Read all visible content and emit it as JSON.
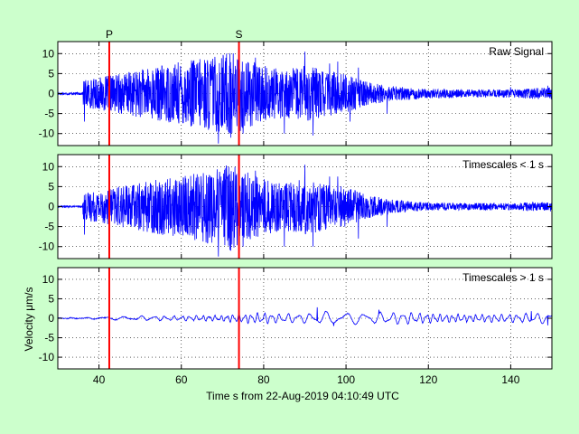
{
  "figure": {
    "background": "#ccffcc",
    "xlabel": "Time s from 22-Aug-2019 04:10:49 UTC",
    "ylabel": "Velocity μm/s",
    "phase_colors": "#ff0000",
    "trace_color": "#0000ff"
  },
  "chart_data": [
    {
      "type": "line",
      "title": "Raw Signal",
      "xlim": [
        30,
        150
      ],
      "ylim": [
        -13,
        13
      ],
      "xticks": [
        40,
        60,
        80,
        100,
        120,
        140
      ],
      "yticks": [
        -10,
        -5,
        0,
        5,
        10
      ],
      "grid": true,
      "phases": [
        {
          "label": "P",
          "x": 42.5
        },
        {
          "label": "S",
          "x": 74
        }
      ],
      "envelope": [
        [
          30,
          0.3
        ],
        [
          36,
          0.3
        ],
        [
          36.2,
          3.5
        ],
        [
          40,
          4
        ],
        [
          45,
          5
        ],
        [
          50,
          6
        ],
        [
          55,
          7
        ],
        [
          60,
          8
        ],
        [
          65,
          9
        ],
        [
          70,
          10
        ],
        [
          72,
          11
        ],
        [
          75,
          9
        ],
        [
          80,
          7
        ],
        [
          85,
          6
        ],
        [
          90,
          7
        ],
        [
          95,
          6
        ],
        [
          100,
          5
        ],
        [
          105,
          3
        ],
        [
          110,
          2
        ],
        [
          115,
          1.6
        ],
        [
          120,
          1.2
        ],
        [
          130,
          1
        ],
        [
          140,
          1
        ],
        [
          150,
          1.6
        ]
      ],
      "peaks": [
        [
          36.5,
          -7
        ],
        [
          69,
          -12.5
        ],
        [
          71,
          10
        ],
        [
          72,
          -11
        ],
        [
          75,
          -10
        ],
        [
          78,
          9
        ],
        [
          85,
          -10
        ],
        [
          90,
          10.5
        ],
        [
          92,
          -10.5
        ],
        [
          96,
          7.5
        ],
        [
          98,
          8
        ],
        [
          101,
          -7
        ],
        [
          103,
          6.5
        ],
        [
          110,
          -5
        ],
        [
          140,
          1.6
        ],
        [
          149,
          2
        ]
      ]
    },
    {
      "type": "line",
      "title": "Timescales < 1 s",
      "xlim": [
        30,
        150
      ],
      "ylim": [
        -13,
        13
      ],
      "xticks": [
        40,
        60,
        80,
        100,
        120,
        140
      ],
      "yticks": [
        -10,
        -5,
        0,
        5,
        10
      ],
      "grid": true,
      "phases": [
        {
          "label": "",
          "x": 42.5
        },
        {
          "label": "",
          "x": 74
        }
      ],
      "envelope": [
        [
          30,
          0.2
        ],
        [
          36,
          0.2
        ],
        [
          36.2,
          3.5
        ],
        [
          40,
          4
        ],
        [
          45,
          5
        ],
        [
          50,
          6
        ],
        [
          55,
          7
        ],
        [
          60,
          8
        ],
        [
          65,
          9
        ],
        [
          70,
          10
        ],
        [
          72,
          11
        ],
        [
          75,
          9
        ],
        [
          80,
          7
        ],
        [
          85,
          6
        ],
        [
          90,
          7
        ],
        [
          95,
          6
        ],
        [
          100,
          5
        ],
        [
          105,
          3
        ],
        [
          110,
          2
        ],
        [
          115,
          1.4
        ],
        [
          120,
          1
        ],
        [
          130,
          0.9
        ],
        [
          140,
          0.9
        ],
        [
          150,
          1.2
        ]
      ],
      "peaks": [
        [
          36.5,
          -7
        ],
        [
          69,
          -12.5
        ],
        [
          71,
          10
        ],
        [
          72,
          -11
        ],
        [
          75,
          -10
        ],
        [
          78,
          9
        ],
        [
          85,
          -10
        ],
        [
          90,
          10.5
        ],
        [
          92,
          -10
        ],
        [
          96,
          7.5
        ],
        [
          98,
          7.5
        ],
        [
          103,
          -8
        ],
        [
          110,
          -5
        ]
      ]
    },
    {
      "type": "line",
      "title": "Timescales > 1 s",
      "xlim": [
        30,
        150
      ],
      "ylim": [
        -13,
        13
      ],
      "xticks": [
        40,
        60,
        80,
        100,
        120,
        140
      ],
      "yticks": [
        -10,
        -5,
        0,
        5,
        10
      ],
      "grid": true,
      "phases": [
        {
          "label": "",
          "x": 42.5
        },
        {
          "label": "",
          "x": 74
        }
      ],
      "envelope": [
        [
          30,
          0.15
        ],
        [
          36,
          0.2
        ],
        [
          40,
          0.4
        ],
        [
          50,
          0.7
        ],
        [
          60,
          0.8
        ],
        [
          70,
          1
        ],
        [
          75,
          1.5
        ],
        [
          80,
          1.8
        ],
        [
          85,
          1.5
        ],
        [
          90,
          1.6
        ],
        [
          95,
          2.2
        ],
        [
          100,
          2.1
        ],
        [
          105,
          1.8
        ],
        [
          110,
          2
        ],
        [
          115,
          2
        ],
        [
          120,
          1.6
        ],
        [
          130,
          1.2
        ],
        [
          140,
          1.4
        ],
        [
          150,
          1.8
        ]
      ],
      "peaks": [
        [
          93,
          2.8
        ],
        [
          97,
          -2
        ],
        [
          108,
          2.2
        ],
        [
          145,
          1.8
        ],
        [
          149,
          -1.8
        ]
      ]
    }
  ]
}
